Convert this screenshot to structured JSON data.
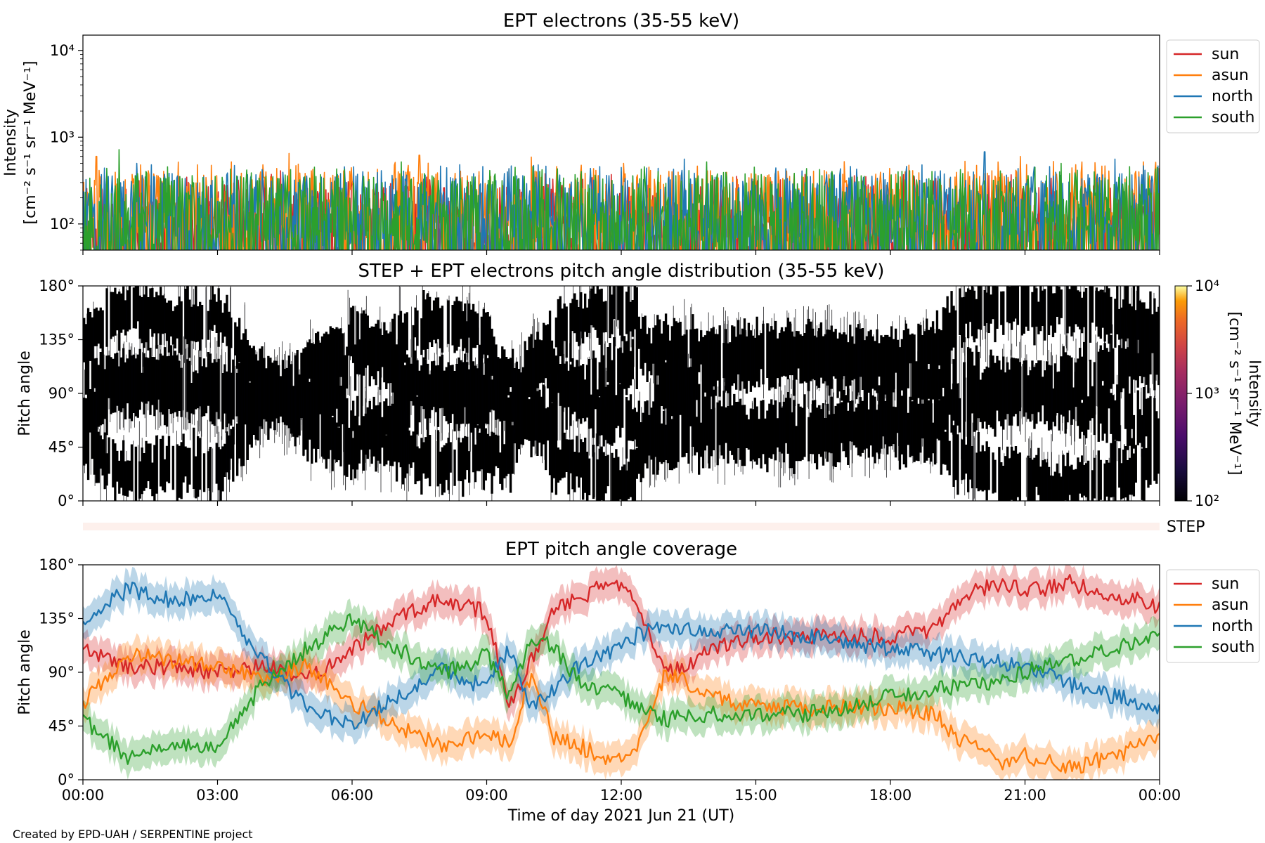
{
  "figure": {
    "credit": "Created by EPD-UAH / SERPENTINE project",
    "xlabel": "Time of day 2021 Jun 21 (UT)",
    "x_ticks": [
      "00:00",
      "03:00",
      "06:00",
      "09:00",
      "12:00",
      "15:00",
      "18:00",
      "21:00",
      "00:00"
    ],
    "colors": {
      "sun": "#d62728",
      "asun": "#ff7f0e",
      "north": "#1f77b4",
      "south": "#2ca02c",
      "pad": "#2d0a57"
    }
  },
  "chart_data": [
    {
      "type": "line",
      "title": "EPT electrons (35-55 keV)",
      "ylabel_line1": "Intensity",
      "ylabel_line2": "[cm⁻² s⁻¹ sr⁻¹ MeV⁻¹]",
      "yscale": "log",
      "ylim": [
        50,
        15000
      ],
      "y_ticks": [
        {
          "value": 100,
          "label": "10²"
        },
        {
          "value": 1000,
          "label": "10³"
        },
        {
          "value": 10000,
          "label": "10⁴"
        }
      ],
      "x": {
        "start_hour": 0,
        "end_hour": 24
      },
      "series": [
        {
          "name": "sun",
          "color": "#d62728",
          "median": 110,
          "peak": 330,
          "spikes": [
            [
              4.4,
              410
            ],
            [
              10.3,
              380
            ],
            [
              17.2,
              360
            ]
          ]
        },
        {
          "name": "asun",
          "color": "#ff7f0e",
          "median": 160,
          "peak": 460,
          "spikes": [
            [
              0.3,
              600
            ],
            [
              4.6,
              650
            ],
            [
              7.5,
              620
            ],
            [
              10.0,
              590
            ],
            [
              20.9,
              600
            ]
          ]
        },
        {
          "name": "north",
          "color": "#1f77b4",
          "median": 150,
          "peak": 420,
          "spikes": [
            [
              1.2,
              500
            ],
            [
              13.4,
              560
            ],
            [
              18.7,
              480
            ],
            [
              20.1,
              680
            ],
            [
              23.0,
              560
            ]
          ]
        },
        {
          "name": "south",
          "color": "#2ca02c",
          "median": 140,
          "peak": 400,
          "spikes": [
            [
              0.8,
              720
            ],
            [
              7.1,
              520
            ],
            [
              13.9,
              520
            ],
            [
              21.8,
              500
            ]
          ]
        }
      ],
      "legend": {
        "placement": "outside-right",
        "entries": [
          "sun",
          "asun",
          "north",
          "south"
        ]
      }
    },
    {
      "type": "heatmap",
      "title": "STEP + EPT electrons pitch angle distribution (35-55 keV)",
      "ylabel": "Pitch angle",
      "ylim": [
        0,
        180
      ],
      "y_ticks": [
        "0°",
        "45°",
        "90°",
        "135°",
        "180°"
      ],
      "colorbar": {
        "label_line1": "Intensity",
        "label_line2": "[cm⁻² s⁻¹ sr⁻¹ MeV⁻¹]",
        "scale": "log",
        "range": [
          100,
          10000
        ],
        "ticks": [
          {
            "value": 100,
            "label": "10²"
          },
          {
            "value": 1000,
            "label": "10³"
          },
          {
            "value": 10000,
            "label": "10⁴"
          }
        ]
      },
      "note": "Pitch-angle bins follow the EPT coverage of the four telescopes; intensities mostly near 10² (dark purple)."
    },
    {
      "type": "table",
      "label": "STEP",
      "note": "STEP coverage strip (very light salmon band)"
    },
    {
      "type": "line",
      "title": "EPT pitch angle coverage",
      "ylabel": "Pitch angle",
      "ylim": [
        0,
        180
      ],
      "y_ticks": [
        "0°",
        "45°",
        "90°",
        "135°",
        "180°"
      ],
      "series": [
        {
          "name": "sun",
          "color": "#d62728",
          "points": [
            [
              0,
              110
            ],
            [
              1,
              95
            ],
            [
              2,
              95
            ],
            [
              3,
              90
            ],
            [
              4,
              95
            ],
            [
              5,
              85
            ],
            [
              6,
              110
            ],
            [
              7,
              135
            ],
            [
              7.5,
              145
            ],
            [
              8,
              150
            ],
            [
              8.5,
              145
            ],
            [
              9,
              140
            ],
            [
              9.5,
              60
            ],
            [
              10,
              100
            ],
            [
              10.5,
              145
            ],
            [
              11,
              150
            ],
            [
              11.5,
              160
            ],
            [
              12,
              165
            ],
            [
              12.3,
              155
            ],
            [
              13,
              90
            ],
            [
              13.5,
              95
            ],
            [
              14,
              110
            ],
            [
              15,
              120
            ],
            [
              16,
              120
            ],
            [
              17,
              120
            ],
            [
              18,
              120
            ],
            [
              19,
              125
            ],
            [
              19.5,
              150
            ],
            [
              20,
              160
            ],
            [
              20.5,
              165
            ],
            [
              21,
              160
            ],
            [
              21.5,
              160
            ],
            [
              22,
              165
            ],
            [
              23,
              155
            ],
            [
              24,
              145
            ]
          ]
        },
        {
          "name": "asun",
          "color": "#ff7f0e",
          "points": [
            [
              0,
              65
            ],
            [
              1,
              105
            ],
            [
              2,
              100
            ],
            [
              3,
              95
            ],
            [
              4,
              85
            ],
            [
              5,
              95
            ],
            [
              6,
              65
            ],
            [
              7,
              45
            ],
            [
              7.5,
              35
            ],
            [
              8,
              30
            ],
            [
              8.5,
              35
            ],
            [
              9,
              40
            ],
            [
              9.5,
              30
            ],
            [
              10,
              90
            ],
            [
              10.5,
              35
            ],
            [
              11,
              30
            ],
            [
              11.5,
              20
            ],
            [
              12,
              15
            ],
            [
              12.3,
              25
            ],
            [
              13,
              90
            ],
            [
              13.5,
              80
            ],
            [
              14,
              70
            ],
            [
              15,
              60
            ],
            [
              16,
              60
            ],
            [
              17,
              60
            ],
            [
              18,
              60
            ],
            [
              19,
              55
            ],
            [
              19.5,
              35
            ],
            [
              20,
              25
            ],
            [
              20.5,
              15
            ],
            [
              21,
              20
            ],
            [
              21.5,
              15
            ],
            [
              22,
              10
            ],
            [
              23,
              20
            ],
            [
              24,
              35
            ]
          ]
        },
        {
          "name": "north",
          "color": "#1f77b4",
          "points": [
            [
              0,
              130
            ],
            [
              1,
              160
            ],
            [
              2,
              150
            ],
            [
              3,
              155
            ],
            [
              4,
              100
            ],
            [
              5,
              60
            ],
            [
              6,
              45
            ],
            [
              7,
              70
            ],
            [
              7.5,
              80
            ],
            [
              8,
              95
            ],
            [
              8.5,
              80
            ],
            [
              9,
              80
            ],
            [
              9.5,
              110
            ],
            [
              10,
              60
            ],
            [
              10.5,
              75
            ],
            [
              11,
              95
            ],
            [
              11.5,
              105
            ],
            [
              12,
              110
            ],
            [
              12.3,
              120
            ],
            [
              13,
              130
            ],
            [
              13.5,
              125
            ],
            [
              14,
              125
            ],
            [
              15,
              125
            ],
            [
              16,
              120
            ],
            [
              17,
              115
            ],
            [
              18,
              110
            ],
            [
              19,
              105
            ],
            [
              20,
              100
            ],
            [
              21,
              95
            ],
            [
              22,
              80
            ],
            [
              23,
              70
            ],
            [
              24,
              60
            ]
          ]
        },
        {
          "name": "south",
          "color": "#2ca02c",
          "points": [
            [
              0,
              50
            ],
            [
              1,
              20
            ],
            [
              2,
              30
            ],
            [
              3,
              25
            ],
            [
              4,
              80
            ],
            [
              5,
              110
            ],
            [
              6,
              135
            ],
            [
              7,
              110
            ],
            [
              7.5,
              100
            ],
            [
              8,
              90
            ],
            [
              8.5,
              95
            ],
            [
              9,
              105
            ],
            [
              9.5,
              70
            ],
            [
              10,
              120
            ],
            [
              10.5,
              110
            ],
            [
              11,
              85
            ],
            [
              11.5,
              75
            ],
            [
              12,
              70
            ],
            [
              12.3,
              60
            ],
            [
              13,
              50
            ],
            [
              13.5,
              55
            ],
            [
              14,
              55
            ],
            [
              15,
              55
            ],
            [
              16,
              55
            ],
            [
              17,
              60
            ],
            [
              18,
              70
            ],
            [
              19,
              75
            ],
            [
              20,
              80
            ],
            [
              21,
              90
            ],
            [
              22,
              100
            ],
            [
              23,
              110
            ],
            [
              24,
              120
            ]
          ]
        }
      ],
      "legend": {
        "placement": "outside-right",
        "entries": [
          "sun",
          "asun",
          "north",
          "south"
        ]
      }
    }
  ]
}
